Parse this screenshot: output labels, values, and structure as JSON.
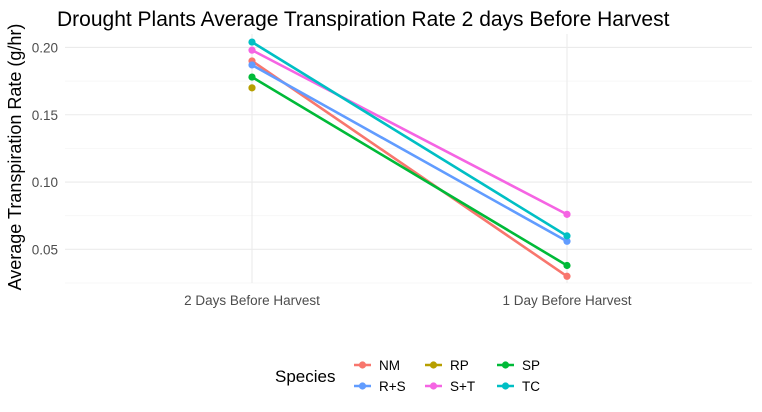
{
  "chart_data": {
    "type": "line",
    "title": "Drought Plants Average Transpiration Rate 2 days Before Harvest",
    "xlabel": "",
    "ylabel": "Average Transpiration Rate (g/hr)",
    "categories": [
      "2 Days Before Harvest",
      "1 Day Before Harvest"
    ],
    "ylim": [
      0.025,
      0.21
    ],
    "yticks": [
      "0.05",
      "0.10",
      "0.15",
      "0.20"
    ],
    "grid": true,
    "legend": {
      "title": "Species",
      "position": "bottom"
    },
    "series": [
      {
        "name": "NM",
        "color": "#F8766D",
        "values": [
          0.19,
          0.03
        ]
      },
      {
        "name": "R+S",
        "color": "#619CFF",
        "values": [
          0.187,
          0.056
        ]
      },
      {
        "name": "RP",
        "color": "#B79F00",
        "values": [
          0.17,
          null
        ]
      },
      {
        "name": "S+T",
        "color": "#F564E3",
        "values": [
          0.198,
          0.076
        ]
      },
      {
        "name": "SP",
        "color": "#00BA38",
        "values": [
          0.178,
          0.038
        ]
      },
      {
        "name": "TC",
        "color": "#00BFC4",
        "values": [
          0.204,
          0.06
        ]
      }
    ]
  }
}
